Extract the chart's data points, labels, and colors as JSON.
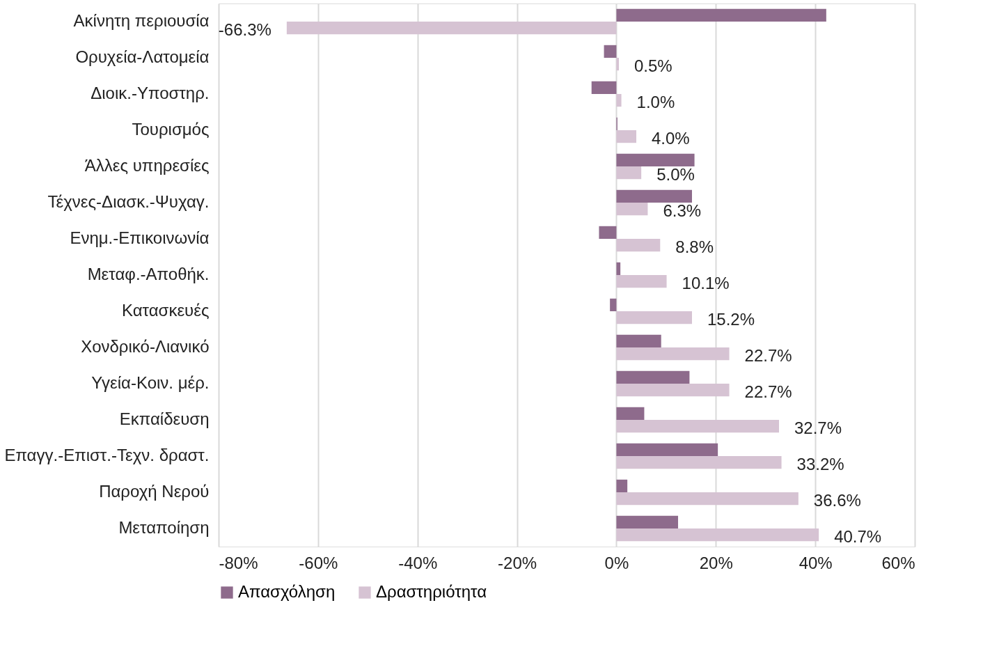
{
  "chart_data": {
    "type": "bar",
    "orientation": "horizontal",
    "categories": [
      "Ακίνητη περιουσία",
      "Ορυχεία-Λατομεία",
      "Διοικ.-Υποστηρ.",
      "Τουρισμός",
      "Άλλες υπηρεσίες",
      "Τέχνες-Διασκ.-Ψυχαγ.",
      "Ενημ.-Επικοινωνία",
      "Μεταφ.-Αποθήκ.",
      "Κατασκευές",
      "Χονδρικό-Λιανικό",
      "Υγεία-Κοιν. μέρ.",
      "Εκπαίδευση",
      "Επαγγ.-Επιστ.-Τεχν. δραστ.",
      "Παροχή Νερού",
      "Μεταποίηση"
    ],
    "series": [
      {
        "name": "Απασχόληση",
        "color": "#8e6b8c",
        "values": [
          42.2,
          -2.5,
          -5.0,
          0.2,
          15.7,
          15.2,
          -3.5,
          0.8,
          -1.3,
          9.0,
          14.7,
          5.6,
          20.4,
          2.2,
          12.4
        ]
      },
      {
        "name": "Δραστηριότητα",
        "color": "#d6c3d3",
        "values": [
          -66.3,
          0.5,
          1.0,
          4.0,
          5.0,
          6.3,
          8.8,
          10.1,
          15.2,
          22.7,
          22.7,
          32.7,
          33.2,
          36.6,
          40.7
        ],
        "value_labels": [
          "-66.3%",
          "0.5%",
          "1.0%",
          "4.0%",
          "5.0%",
          "6.3%",
          "8.8%",
          "10.1%",
          "15.2%",
          "22.7%",
          "22.7%",
          "32.7%",
          "33.2%",
          "36.6%",
          "40.7%"
        ]
      }
    ],
    "xlim": [
      -80,
      60
    ],
    "xticks": [
      {
        "value": -80,
        "label": "-80%"
      },
      {
        "value": -60,
        "label": "-60%"
      },
      {
        "value": -40,
        "label": "-40%"
      },
      {
        "value": -20,
        "label": "-20%"
      },
      {
        "value": 0,
        "label": "0%"
      },
      {
        "value": 20,
        "label": "20%"
      },
      {
        "value": 40,
        "label": "40%"
      },
      {
        "value": 60,
        "label": "60%"
      }
    ],
    "grid": "x",
    "legend": "bottom"
  }
}
